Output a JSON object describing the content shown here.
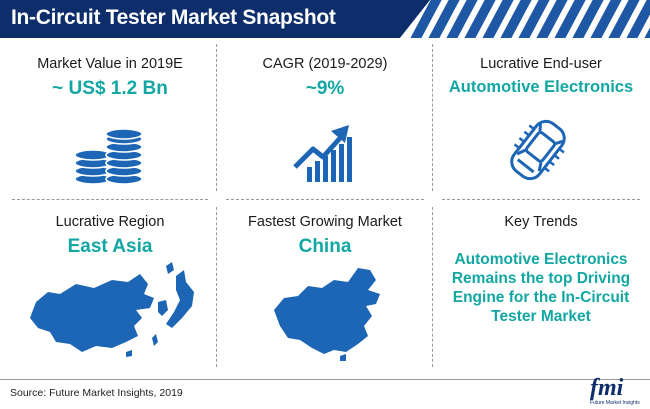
{
  "header": {
    "title": "In-Circuit Tester Market Snapshot"
  },
  "cells": [
    {
      "label": "Market Value in 2019E",
      "value": "~ US$ 1.2 Bn",
      "icon": "coin-stacks-icon"
    },
    {
      "label": "CAGR (2019-2029)",
      "value": "~9%",
      "icon": "growth-chart-icon"
    },
    {
      "label": "Lucrative End-user",
      "value": "Automotive Electronics",
      "icon": "car-chip-icon"
    },
    {
      "label": "Lucrative Region",
      "value": "East Asia",
      "icon": "east-asia-map-icon"
    },
    {
      "label": "Fastest Growing Market",
      "value": "China",
      "icon": "china-map-icon"
    },
    {
      "label": "Key Trends",
      "value": "Automotive Electronics Remains the top Driving Engine for the In-Circuit Tester Market"
    }
  ],
  "footer": {
    "source": "Source: Future Market Insights, 2019",
    "logo_text": "fmi",
    "logo_sub": "Future Market Insights"
  },
  "colors": {
    "banner": "#0d2d6b",
    "stripe": "#1e57a4",
    "accent": "#12a7a3",
    "icon_blue": "#1c66b5"
  }
}
